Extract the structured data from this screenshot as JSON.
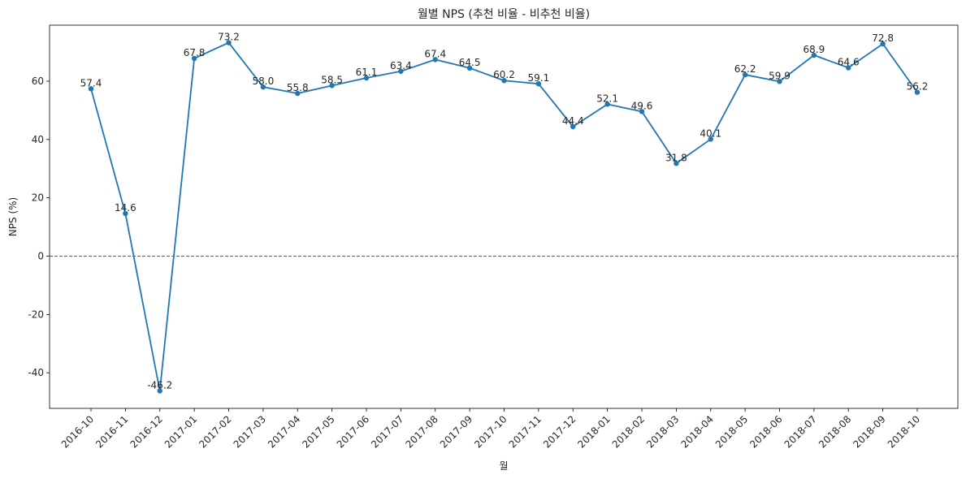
{
  "chart_data": {
    "type": "line",
    "title": "월별 NPS (추천 비율 - 비추천 비율)",
    "xlabel": "월",
    "ylabel": "NPS (%)",
    "categories": [
      "2016-10",
      "2016-11",
      "2016-12",
      "2017-01",
      "2017-02",
      "2017-03",
      "2017-04",
      "2017-05",
      "2017-06",
      "2017-07",
      "2017-08",
      "2017-09",
      "2017-10",
      "2017-11",
      "2017-12",
      "2018-01",
      "2018-02",
      "2018-03",
      "2018-04",
      "2018-05",
      "2018-06",
      "2018-07",
      "2018-08",
      "2018-09",
      "2018-10"
    ],
    "values": [
      57.4,
      14.6,
      -46.2,
      67.8,
      73.2,
      58.0,
      55.8,
      58.5,
      61.1,
      63.4,
      67.4,
      64.5,
      60.2,
      59.1,
      44.4,
      52.1,
      49.6,
      31.8,
      40.1,
      62.2,
      59.9,
      68.9,
      64.6,
      72.8,
      56.2
    ],
    "data_labels": [
      "57.4",
      "14.6",
      "-46.2",
      "67.8",
      "73.2",
      "58.0",
      "55.8",
      "58.5",
      "61.1",
      "63.4",
      "67.4",
      "64.5",
      "60.2",
      "59.1",
      "44.4",
      "52.1",
      "49.6",
      "31.8",
      "40.1",
      "62.2",
      "59.9",
      "68.9",
      "64.6",
      "72.8",
      "56.2"
    ],
    "ylim": [
      -52.2,
      79.2
    ],
    "yticks": [
      -40,
      -20,
      0,
      20,
      40,
      60
    ],
    "ytick_labels": [
      "-40",
      "-20",
      "0",
      "20",
      "40",
      "60"
    ],
    "reference_line": {
      "value": 0,
      "color": "#e8202a",
      "style": "dashed"
    },
    "line_color": "#1f77b4",
    "grid": false,
    "legend": "none"
  }
}
